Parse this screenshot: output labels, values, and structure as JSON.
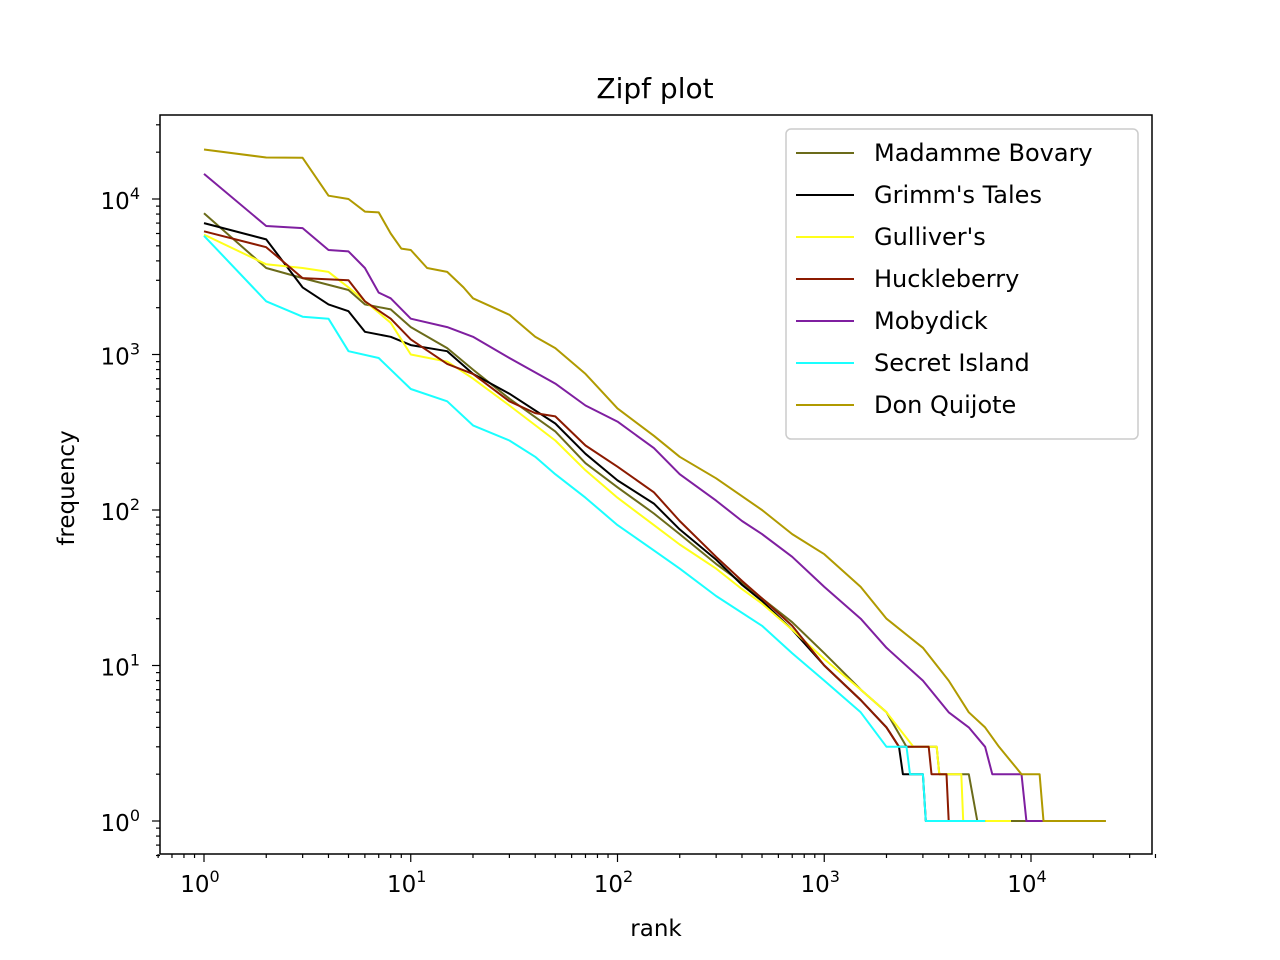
{
  "chart_data": {
    "type": "line",
    "title": "Zipf plot",
    "xlabel": "rank",
    "ylabel": "frequency",
    "xscale": "log",
    "yscale": "log",
    "xlim": [
      0.6,
      40000
    ],
    "ylim": [
      0.6,
      35000
    ],
    "xticks": [
      1,
      10,
      100,
      1000,
      10000
    ],
    "yticks": [
      1,
      10,
      100,
      1000,
      10000
    ],
    "grid": false,
    "legend_position": "top-right",
    "series": [
      {
        "name": "Madamme Bovary",
        "color": "#6b6b1a",
        "points": [
          [
            1,
            8100
          ],
          [
            2,
            3600
          ],
          [
            3,
            3100
          ],
          [
            5,
            2600
          ],
          [
            6,
            2100
          ],
          [
            8,
            1950
          ],
          [
            10,
            1500
          ],
          [
            15,
            1100
          ],
          [
            20,
            800
          ],
          [
            30,
            520
          ],
          [
            50,
            320
          ],
          [
            70,
            200
          ],
          [
            100,
            140
          ],
          [
            150,
            95
          ],
          [
            200,
            70
          ],
          [
            300,
            45
          ],
          [
            400,
            34
          ],
          [
            500,
            27
          ],
          [
            700,
            19
          ],
          [
            1000,
            12
          ],
          [
            1500,
            7
          ],
          [
            2000,
            5
          ],
          [
            2500,
            3
          ],
          [
            3500,
            3
          ],
          [
            3600,
            2
          ],
          [
            5000,
            2
          ],
          [
            5500,
            1
          ],
          [
            23000,
            1
          ]
        ]
      },
      {
        "name": "Grimm's Tales",
        "color": "#000000",
        "points": [
          [
            1,
            7000
          ],
          [
            2,
            5500
          ],
          [
            3,
            2700
          ],
          [
            4,
            2100
          ],
          [
            5,
            1900
          ],
          [
            6,
            1400
          ],
          [
            8,
            1300
          ],
          [
            10,
            1150
          ],
          [
            15,
            1050
          ],
          [
            20,
            750
          ],
          [
            30,
            560
          ],
          [
            50,
            360
          ],
          [
            70,
            230
          ],
          [
            100,
            155
          ],
          [
            150,
            110
          ],
          [
            200,
            75
          ],
          [
            300,
            48
          ],
          [
            400,
            33
          ],
          [
            500,
            26
          ],
          [
            700,
            17
          ],
          [
            1000,
            10
          ],
          [
            1500,
            6
          ],
          [
            2000,
            4
          ],
          [
            2300,
            3
          ],
          [
            2400,
            2
          ],
          [
            3000,
            2
          ],
          [
            3100,
            1
          ],
          [
            6000,
            1
          ]
        ]
      },
      {
        "name": "Gulliver's",
        "color": "#ffff1a",
        "points": [
          [
            1,
            5900
          ],
          [
            2,
            3800
          ],
          [
            3,
            3600
          ],
          [
            4,
            3400
          ],
          [
            5,
            2700
          ],
          [
            8,
            1600
          ],
          [
            10,
            1000
          ],
          [
            15,
            900
          ],
          [
            20,
            700
          ],
          [
            30,
            470
          ],
          [
            50,
            280
          ],
          [
            70,
            180
          ],
          [
            100,
            120
          ],
          [
            150,
            80
          ],
          [
            200,
            60
          ],
          [
            300,
            42
          ],
          [
            400,
            31
          ],
          [
            500,
            25
          ],
          [
            700,
            17
          ],
          [
            1000,
            11
          ],
          [
            1500,
            7
          ],
          [
            2000,
            5
          ],
          [
            2700,
            3
          ],
          [
            3500,
            3
          ],
          [
            3600,
            2
          ],
          [
            4600,
            2
          ],
          [
            4700,
            1
          ],
          [
            8000,
            1
          ]
        ]
      },
      {
        "name": "Huckleberry",
        "color": "#8b1a00",
        "points": [
          [
            1,
            6200
          ],
          [
            2,
            4900
          ],
          [
            3,
            3100
          ],
          [
            5,
            3000
          ],
          [
            6,
            2200
          ],
          [
            8,
            1700
          ],
          [
            10,
            1250
          ],
          [
            15,
            870
          ],
          [
            20,
            750
          ],
          [
            30,
            500
          ],
          [
            40,
            420
          ],
          [
            50,
            400
          ],
          [
            70,
            260
          ],
          [
            100,
            190
          ],
          [
            150,
            130
          ],
          [
            200,
            85
          ],
          [
            300,
            50
          ],
          [
            400,
            35
          ],
          [
            500,
            27
          ],
          [
            700,
            18
          ],
          [
            1000,
            10
          ],
          [
            1500,
            6
          ],
          [
            2000,
            4
          ],
          [
            2300,
            3
          ],
          [
            3200,
            3
          ],
          [
            3300,
            2
          ],
          [
            3900,
            2
          ],
          [
            4000,
            1
          ],
          [
            6000,
            1
          ]
        ]
      },
      {
        "name": "Mobydick",
        "color": "#7f1fa0",
        "points": [
          [
            1,
            14500
          ],
          [
            2,
            6700
          ],
          [
            3,
            6500
          ],
          [
            4,
            4700
          ],
          [
            5,
            4600
          ],
          [
            6,
            3600
          ],
          [
            7,
            2500
          ],
          [
            8,
            2300
          ],
          [
            10,
            1700
          ],
          [
            15,
            1500
          ],
          [
            20,
            1300
          ],
          [
            30,
            950
          ],
          [
            50,
            650
          ],
          [
            70,
            470
          ],
          [
            100,
            370
          ],
          [
            150,
            250
          ],
          [
            200,
            170
          ],
          [
            300,
            115
          ],
          [
            400,
            85
          ],
          [
            500,
            70
          ],
          [
            700,
            50
          ],
          [
            1000,
            32
          ],
          [
            1500,
            20
          ],
          [
            2000,
            13
          ],
          [
            3000,
            8
          ],
          [
            4000,
            5
          ],
          [
            5000,
            4
          ],
          [
            6000,
            3
          ],
          [
            6500,
            2
          ],
          [
            9000,
            2
          ],
          [
            9500,
            1
          ],
          [
            12000,
            1
          ]
        ]
      },
      {
        "name": "Secret Island",
        "color": "#1affff",
        "points": [
          [
            1,
            5800
          ],
          [
            2,
            2200
          ],
          [
            3,
            1750
          ],
          [
            4,
            1700
          ],
          [
            5,
            1050
          ],
          [
            7,
            950
          ],
          [
            10,
            600
          ],
          [
            15,
            500
          ],
          [
            20,
            350
          ],
          [
            30,
            280
          ],
          [
            40,
            220
          ],
          [
            50,
            170
          ],
          [
            70,
            120
          ],
          [
            100,
            80
          ],
          [
            150,
            55
          ],
          [
            200,
            42
          ],
          [
            300,
            28
          ],
          [
            500,
            18
          ],
          [
            700,
            12
          ],
          [
            1000,
            8
          ],
          [
            1500,
            5
          ],
          [
            2000,
            3
          ],
          [
            2500,
            3
          ],
          [
            2600,
            2
          ],
          [
            3000,
            2
          ],
          [
            3100,
            1
          ],
          [
            6000,
            1
          ]
        ]
      },
      {
        "name": "Don Quijote",
        "color": "#b09a00",
        "points": [
          [
            1,
            20800
          ],
          [
            2,
            18500
          ],
          [
            3,
            18400
          ],
          [
            4,
            10500
          ],
          [
            5,
            10000
          ],
          [
            6,
            8300
          ],
          [
            7,
            8200
          ],
          [
            8,
            6000
          ],
          [
            9,
            4800
          ],
          [
            10,
            4700
          ],
          [
            12,
            3600
          ],
          [
            15,
            3400
          ],
          [
            18,
            2700
          ],
          [
            20,
            2300
          ],
          [
            30,
            1800
          ],
          [
            40,
            1300
          ],
          [
            50,
            1100
          ],
          [
            70,
            750
          ],
          [
            100,
            450
          ],
          [
            150,
            300
          ],
          [
            200,
            220
          ],
          [
            300,
            160
          ],
          [
            500,
            100
          ],
          [
            700,
            70
          ],
          [
            1000,
            52
          ],
          [
            1500,
            32
          ],
          [
            2000,
            20
          ],
          [
            3000,
            13
          ],
          [
            4000,
            8
          ],
          [
            5000,
            5
          ],
          [
            6000,
            4
          ],
          [
            7000,
            3
          ],
          [
            9000,
            2
          ],
          [
            11000,
            2
          ],
          [
            11500,
            1
          ],
          [
            23000,
            1
          ]
        ]
      }
    ]
  }
}
